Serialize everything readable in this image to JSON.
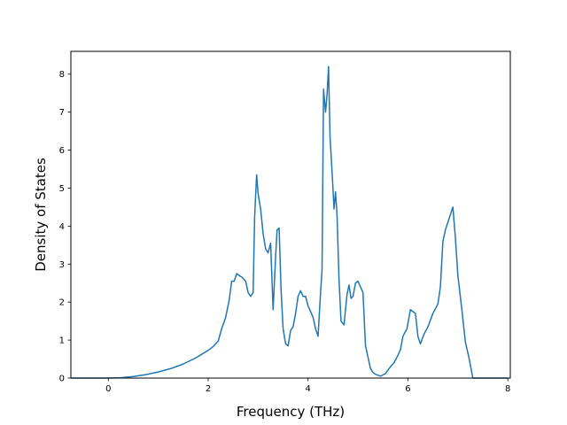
{
  "chart_data": {
    "type": "line",
    "title": "",
    "xlabel": "Frequency (THz)",
    "ylabel": "Density of States",
    "xlim": [
      -0.75,
      8.05
    ],
    "ylim": [
      0,
      8.6
    ],
    "grid": false,
    "legend": "none",
    "line_color": "#1f77b4",
    "x_ticks": [
      0,
      2,
      4,
      6,
      8
    ],
    "x_tick_labels": [
      "0",
      "2",
      "4",
      "6",
      "8"
    ],
    "y_ticks": [
      0,
      1,
      2,
      3,
      4,
      5,
      6,
      7,
      8
    ],
    "y_tick_labels": [
      "0",
      "1",
      "2",
      "3",
      "4",
      "5",
      "6",
      "7",
      "8"
    ],
    "series": [
      {
        "x": [
          -0.75,
          -0.5,
          -0.25,
          0.0,
          0.25,
          0.5,
          0.75,
          1.0,
          1.25,
          1.5,
          1.75,
          2.0,
          2.1,
          2.2,
          2.27,
          2.35,
          2.42,
          2.47,
          2.52,
          2.57,
          2.62,
          2.68,
          2.75,
          2.8,
          2.85,
          2.9,
          2.93,
          2.97,
          3.0,
          3.05,
          3.1,
          3.15,
          3.2,
          3.25,
          3.3,
          3.35,
          3.38,
          3.42,
          3.46,
          3.5,
          3.55,
          3.6,
          3.65,
          3.7,
          3.75,
          3.8,
          3.85,
          3.9,
          3.95,
          4.0,
          4.05,
          4.1,
          4.15,
          4.2,
          4.25,
          4.28,
          4.31,
          4.35,
          4.38,
          4.41,
          4.44,
          4.48,
          4.52,
          4.55,
          4.58,
          4.62,
          4.66,
          4.72,
          4.78,
          4.82,
          4.86,
          4.9,
          4.95,
          5.0,
          5.05,
          5.1,
          5.15,
          5.2,
          5.25,
          5.3,
          5.35,
          5.45,
          5.55,
          5.65,
          5.72,
          5.8,
          5.85,
          5.9,
          5.98,
          6.05,
          6.15,
          6.2,
          6.25,
          6.32,
          6.4,
          6.5,
          6.6,
          6.65,
          6.7,
          6.75,
          6.8,
          6.85,
          6.9,
          6.95,
          7.0,
          7.08,
          7.15,
          7.22,
          7.3,
          7.4,
          7.6,
          7.8,
          8.0
        ],
        "y": [
          0,
          0,
          0,
          0,
          0.01,
          0.04,
          0.09,
          0.16,
          0.25,
          0.37,
          0.53,
          0.73,
          0.83,
          0.97,
          1.3,
          1.6,
          2.05,
          2.55,
          2.55,
          2.75,
          2.7,
          2.65,
          2.55,
          2.25,
          2.15,
          2.25,
          4.25,
          5.35,
          4.85,
          4.45,
          3.8,
          3.4,
          3.3,
          3.55,
          1.8,
          3.2,
          3.9,
          3.95,
          2.3,
          1.3,
          0.9,
          0.85,
          1.25,
          1.35,
          1.7,
          2.15,
          2.3,
          2.15,
          2.15,
          1.9,
          1.75,
          1.6,
          1.3,
          1.1,
          2.25,
          2.85,
          7.6,
          7.0,
          7.45,
          8.2,
          6.35,
          5.45,
          4.45,
          4.9,
          4.3,
          2.6,
          1.5,
          1.4,
          2.2,
          2.45,
          2.1,
          2.15,
          2.5,
          2.55,
          2.4,
          2.25,
          0.85,
          0.55,
          0.25,
          0.15,
          0.1,
          0.05,
          0.12,
          0.3,
          0.4,
          0.6,
          0.75,
          1.1,
          1.3,
          1.8,
          1.7,
          1.1,
          0.9,
          1.15,
          1.35,
          1.7,
          1.95,
          2.4,
          3.6,
          3.9,
          4.1,
          4.3,
          4.5,
          3.7,
          2.7,
          1.8,
          0.95,
          0.55,
          0,
          0,
          0,
          0,
          0
        ]
      }
    ]
  }
}
